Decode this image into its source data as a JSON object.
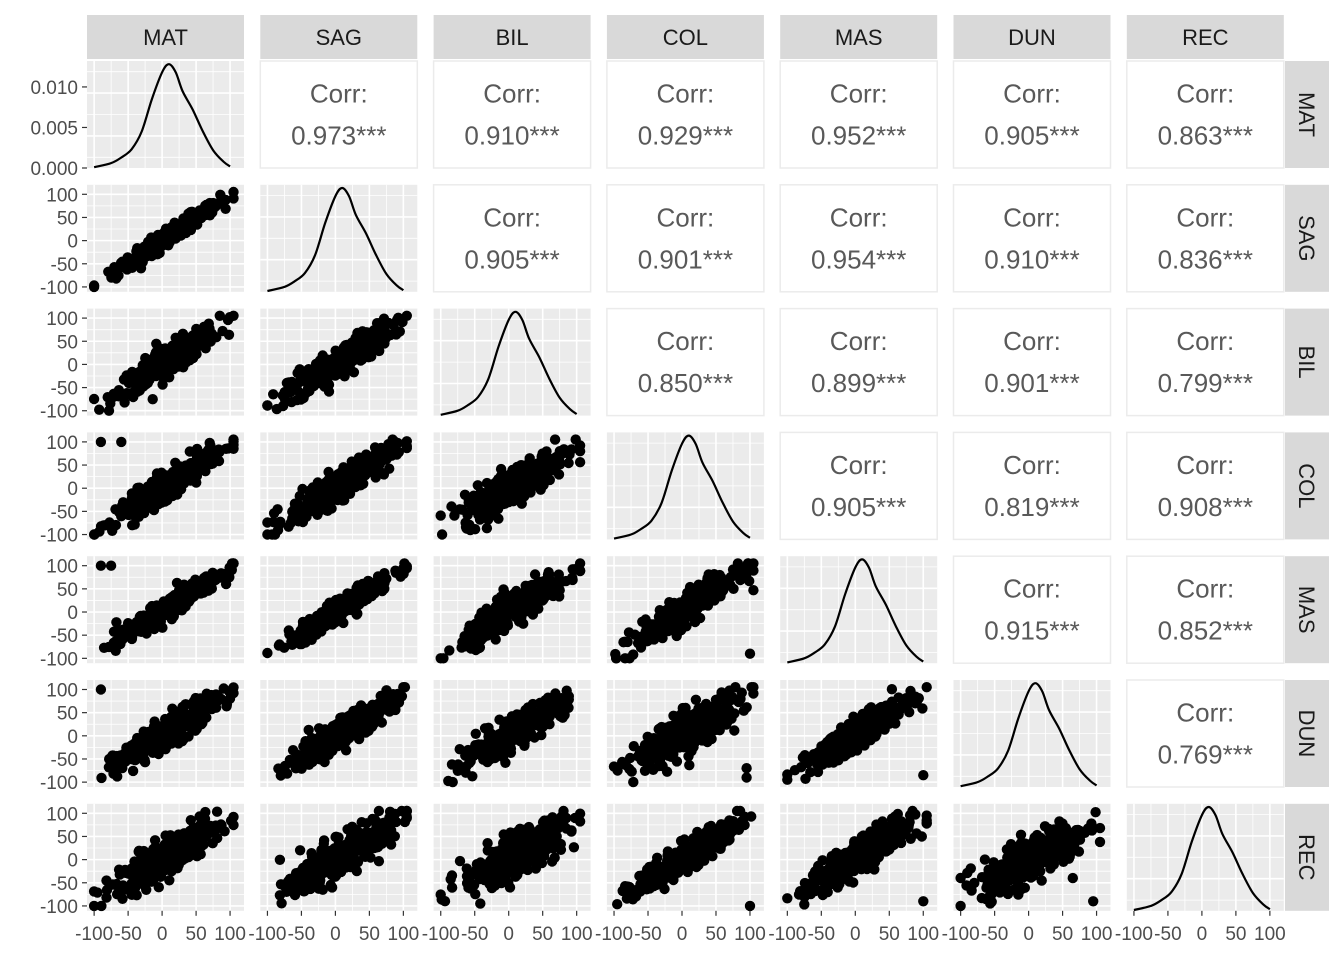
{
  "chart_data": {
    "type": "scatter",
    "subtype": "pairs-plot",
    "variables": [
      "MAT",
      "SAG",
      "BIL",
      "COL",
      "MAS",
      "DUN",
      "REC"
    ],
    "axis_range": [
      -100,
      110
    ],
    "x_ticks": [
      "-100",
      "-50",
      "0",
      "50",
      "100"
    ],
    "y_ticks": [
      "-100",
      "-50",
      "0",
      "50",
      "100"
    ],
    "density_y_ticks": [
      "0.000",
      "0.005",
      "0.010"
    ],
    "density_ylim": [
      0,
      0.0132
    ],
    "corr_label": "Corr:",
    "correlations": [
      {
        "row": "MAT",
        "col": "SAG",
        "value": "0.973***"
      },
      {
        "row": "MAT",
        "col": "BIL",
        "value": "0.910***"
      },
      {
        "row": "MAT",
        "col": "COL",
        "value": "0.929***"
      },
      {
        "row": "MAT",
        "col": "MAS",
        "value": "0.952***"
      },
      {
        "row": "MAT",
        "col": "DUN",
        "value": "0.905***"
      },
      {
        "row": "MAT",
        "col": "REC",
        "value": "0.863***"
      },
      {
        "row": "SAG",
        "col": "BIL",
        "value": "0.905***"
      },
      {
        "row": "SAG",
        "col": "COL",
        "value": "0.901***"
      },
      {
        "row": "SAG",
        "col": "MAS",
        "value": "0.954***"
      },
      {
        "row": "SAG",
        "col": "DUN",
        "value": "0.910***"
      },
      {
        "row": "SAG",
        "col": "REC",
        "value": "0.836***"
      },
      {
        "row": "BIL",
        "col": "COL",
        "value": "0.850***"
      },
      {
        "row": "BIL",
        "col": "MAS",
        "value": "0.899***"
      },
      {
        "row": "BIL",
        "col": "DUN",
        "value": "0.901***"
      },
      {
        "row": "BIL",
        "col": "REC",
        "value": "0.799***"
      },
      {
        "row": "COL",
        "col": "MAS",
        "value": "0.905***"
      },
      {
        "row": "COL",
        "col": "DUN",
        "value": "0.819***"
      },
      {
        "row": "COL",
        "col": "REC",
        "value": "0.908***"
      },
      {
        "row": "MAS",
        "col": "DUN",
        "value": "0.915***"
      },
      {
        "row": "MAS",
        "col": "REC",
        "value": "0.852***"
      },
      {
        "row": "DUN",
        "col": "REC",
        "value": "0.769***"
      }
    ],
    "density_curve": {
      "x": [
        -100,
        -75,
        -60,
        -45,
        -30,
        -15,
        0,
        10,
        20,
        30,
        45,
        60,
        75,
        90,
        100
      ],
      "y": [
        0.0001,
        0.0006,
        0.0013,
        0.0023,
        0.0045,
        0.0085,
        0.0118,
        0.0128,
        0.0118,
        0.0095,
        0.0072,
        0.0045,
        0.0022,
        0.0008,
        0.0002
      ]
    },
    "scatter_note_values": {
      "cluster_range": [
        -100,
        110
      ],
      "outliers": [
        {
          "row": "COL",
          "col": "MAT",
          "x": -90,
          "y": 100
        },
        {
          "row": "COL",
          "col": "MAT",
          "x": -60,
          "y": 100
        },
        {
          "row": "MAS",
          "col": "MAT",
          "x": -90,
          "y": 100
        },
        {
          "row": "MAS",
          "col": "MAT",
          "x": -75,
          "y": 100
        },
        {
          "row": "DUN",
          "col": "MAT",
          "x": -90,
          "y": 100
        },
        {
          "row": "MAS",
          "col": "COL",
          "x": 100,
          "y": -90
        },
        {
          "row": "DUN",
          "col": "COL",
          "x": 95,
          "y": -90
        },
        {
          "row": "DUN",
          "col": "COL",
          "x": 95,
          "y": -70
        },
        {
          "row": "DUN",
          "col": "MAS",
          "x": 100,
          "y": -85
        },
        {
          "row": "REC",
          "col": "MAS",
          "x": 100,
          "y": -90
        },
        {
          "row": "REC",
          "col": "DUN",
          "x": 95,
          "y": -90
        },
        {
          "row": "REC",
          "col": "DUN",
          "x": 65,
          "y": -40
        },
        {
          "row": "REC",
          "col": "COL",
          "x": 100,
          "y": -100
        }
      ]
    }
  }
}
